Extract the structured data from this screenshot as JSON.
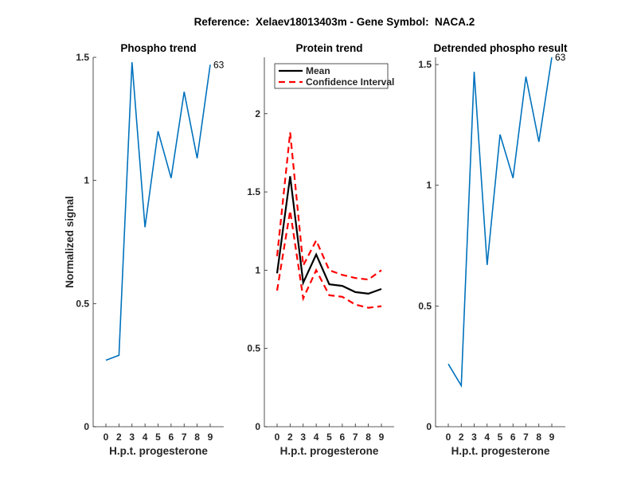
{
  "figure_title": "Reference:  Xelaev18013403m - Gene Symbol:  NACA.2",
  "colors": {
    "phospho": "#0072BD",
    "mean": "#000000",
    "ci": "#FF0000"
  },
  "chart_data": [
    {
      "type": "line",
      "title": "Phospho trend",
      "xlabel": "H.p.t. progesterone",
      "ylabel": "Normalized signal",
      "categories": [
        "0",
        "2",
        "3",
        "4",
        "5",
        "6",
        "7",
        "8",
        "9"
      ],
      "ylim": [
        0,
        1.5
      ],
      "yticks": [
        "0",
        "0.5",
        "1",
        "1.5"
      ],
      "series": [
        {
          "name": "Phospho",
          "values": [
            0.27,
            0.29,
            1.48,
            0.81,
            1.2,
            1.01,
            1.36,
            1.09,
            1.47
          ]
        }
      ],
      "annotation": "63"
    },
    {
      "type": "line",
      "title": "Protein trend",
      "xlabel": "H.p.t. progesterone",
      "ylabel": "",
      "categories": [
        "0",
        "2",
        "3",
        "4",
        "5",
        "6",
        "7",
        "8",
        "9"
      ],
      "ylim": [
        0,
        2.36
      ],
      "yticks": [
        "0",
        "0.5",
        "1",
        "1.5",
        "2"
      ],
      "legend": {
        "placement": "top",
        "entries": [
          "Mean",
          "Confidence Interval"
        ]
      },
      "series": [
        {
          "name": "Mean",
          "values": [
            0.98,
            1.6,
            0.92,
            1.1,
            0.91,
            0.9,
            0.86,
            0.85,
            0.88
          ]
        },
        {
          "name": "Confidence Interval upper",
          "values": [
            1.09,
            1.88,
            1.03,
            1.19,
            1.0,
            0.97,
            0.95,
            0.94,
            1.0
          ]
        },
        {
          "name": "Confidence Interval lower",
          "values": [
            0.87,
            1.38,
            0.82,
            1.0,
            0.84,
            0.83,
            0.78,
            0.76,
            0.77
          ]
        }
      ]
    },
    {
      "type": "line",
      "title": "Detrended phospho result",
      "xlabel": "H.p.t. progesterone",
      "ylabel": "",
      "categories": [
        "0",
        "2",
        "3",
        "4",
        "5",
        "6",
        "7",
        "8",
        "9"
      ],
      "ylim": [
        0,
        1.53
      ],
      "yticks": [
        "0",
        "0.5",
        "1",
        "1.5"
      ],
      "series": [
        {
          "name": "Detrended",
          "values": [
            0.26,
            0.17,
            1.47,
            0.67,
            1.21,
            1.03,
            1.45,
            1.18,
            1.53
          ]
        }
      ],
      "annotation": "63"
    }
  ]
}
